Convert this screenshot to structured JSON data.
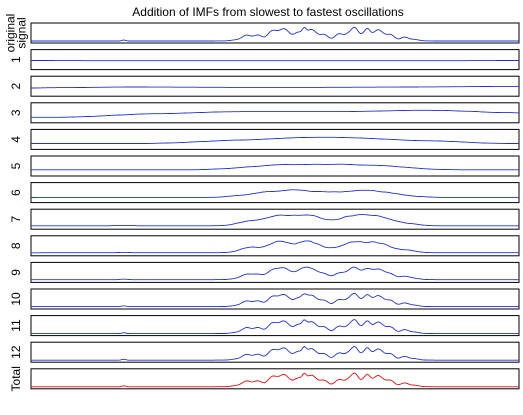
{
  "chart_data": {
    "type": "line",
    "title": "Addition of IMFs from slowest to fastest oscillations",
    "panel_labels": [
      "original\nsignal",
      "1",
      "2",
      "3",
      "4",
      "5",
      "6",
      "7",
      "8",
      "9",
      "10",
      "11",
      "12",
      "Total"
    ],
    "colors": {
      "signal": "#2233cc",
      "total": "#dd1111",
      "axes": "#000000",
      "background": "#ffffff"
    },
    "x_ticks_shown": false,
    "y_ticks_shown": false,
    "grid": false,
    "legend": "none"
  }
}
